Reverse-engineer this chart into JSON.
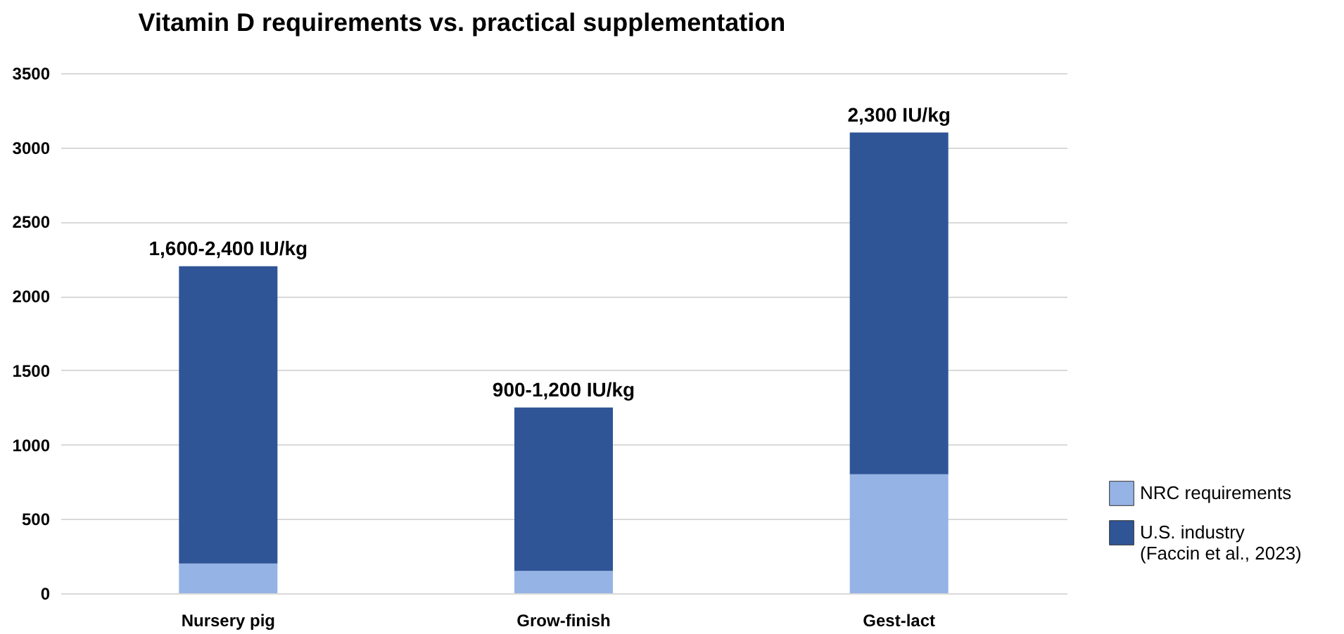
{
  "chart_data": {
    "type": "bar",
    "title": "Vitamin D requirements vs. practical supplementation",
    "categories": [
      "Nursery pig",
      "Grow-finish",
      "Gest-lact"
    ],
    "series": [
      {
        "name": "NRC requirements",
        "color": "#95b3e5",
        "values": [
          200,
          150,
          800
        ]
      },
      {
        "name": "U.S. industry\n(Faccin et al., 2023)",
        "color": "#2f5597",
        "values": [
          2000,
          1100,
          2300
        ]
      }
    ],
    "stacked": true,
    "annotations": [
      {
        "text": "1,600-2,400 IU/kg",
        "x": "Nursery pig",
        "y": 2200
      },
      {
        "text": "900-1,200 IU/kg",
        "x": "Grow-finish",
        "y": 1250
      },
      {
        "text": "2,300 IU/kg",
        "x": "Gest-lact",
        "y": 3100
      }
    ],
    "ylim": [
      0,
      3500
    ],
    "yticks": [
      0,
      500,
      1000,
      1500,
      2000,
      2500,
      3000,
      3500
    ],
    "grid": "y",
    "legend": "bottom right"
  }
}
